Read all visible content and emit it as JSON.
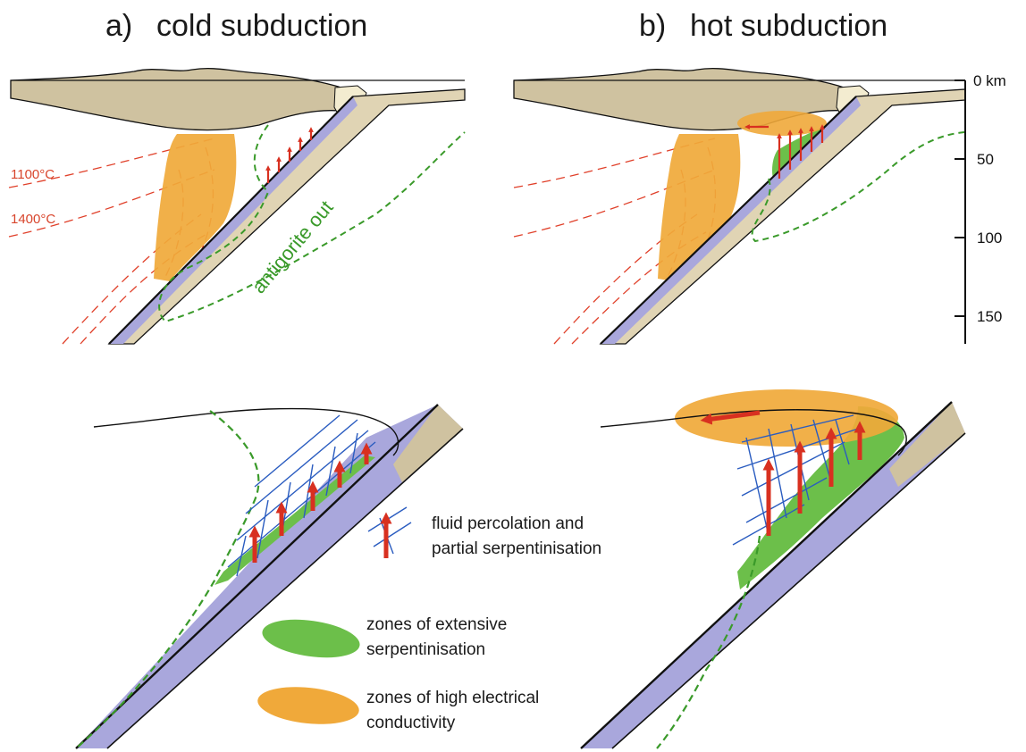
{
  "panels": {
    "a": {
      "letter": "a)",
      "title": "cold subduction"
    },
    "b": {
      "letter": "b)",
      "title": "hot subduction"
    }
  },
  "isotherms": {
    "t1": "1100°C",
    "t2": "1400°C"
  },
  "antigorite_label": "antigorite out",
  "depth_axis": {
    "unit": "km",
    "ticks": [
      {
        "value": 0,
        "label": "0 km"
      },
      {
        "value": 50,
        "label": "50"
      },
      {
        "value": 100,
        "label": "100"
      },
      {
        "value": 150,
        "label": "150"
      }
    ]
  },
  "legend": {
    "fluid": {
      "line1": "fluid percolation and",
      "line2": "partial serpentinisation"
    },
    "serp": {
      "line1": "zones of extensive",
      "line2": "serpentinisation"
    },
    "cond": {
      "line1": "zones of high electrical",
      "line2": "conductivity"
    }
  },
  "colors": {
    "crust": "#cfc2a0",
    "slab": "#e8dcc0",
    "oceanic_crust": "#a9a7dc",
    "mantle_wedge_serpentinite": "#6cbf4a",
    "conductive_zone": "#f0a93a",
    "isotherm": "#e0402a",
    "fluid_arrow": "#d83020",
    "serpentinisation_grid": "#2a5cc0",
    "antigorite_line": "#3a9a2a"
  }
}
